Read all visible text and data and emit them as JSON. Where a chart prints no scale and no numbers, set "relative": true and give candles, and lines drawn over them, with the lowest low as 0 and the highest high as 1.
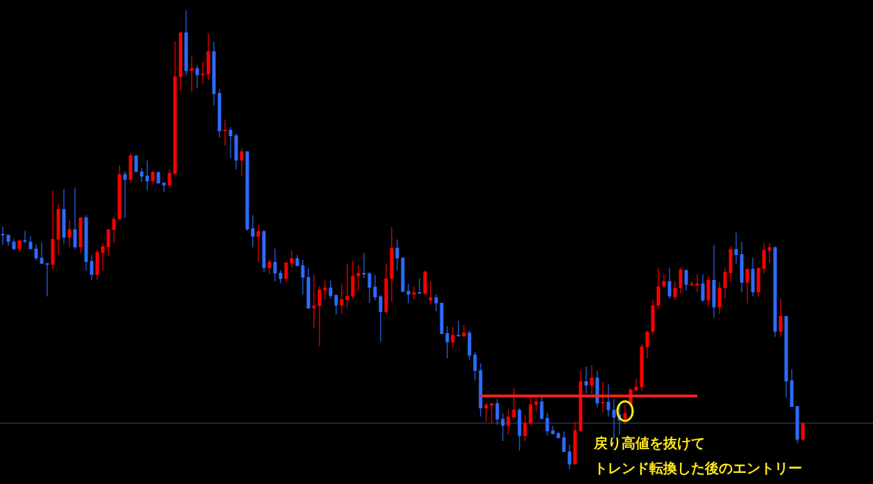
{
  "chart_data": {
    "type": "candlestick",
    "relative": true,
    "categories": [
      null,
      null,
      null,
      null,
      null,
      null,
      null,
      null,
      null,
      null,
      null,
      null,
      null,
      null,
      null,
      null,
      null,
      null,
      null,
      null,
      null,
      null,
      null,
      null,
      null,
      null,
      null,
      null,
      null,
      null,
      null,
      null,
      null,
      null,
      null,
      null,
      null,
      null,
      null,
      null,
      null,
      null,
      null,
      null,
      null,
      null,
      null,
      null,
      null,
      null,
      null,
      null,
      null,
      null,
      null,
      null,
      null,
      null,
      null,
      null,
      null,
      null,
      null,
      null,
      null,
      null,
      null,
      null,
      null,
      null,
      null,
      null,
      null,
      null,
      null,
      null,
      null,
      null,
      null,
      null,
      null,
      null,
      null,
      null,
      null,
      null,
      null,
      null,
      null,
      null,
      null,
      null,
      null,
      null,
      null,
      null,
      null,
      null,
      null,
      null,
      null,
      null,
      null,
      null,
      null,
      null,
      null,
      null,
      null,
      null,
      null,
      null,
      null,
      null,
      null,
      null,
      null,
      null,
      null,
      null,
      null,
      null,
      null,
      null,
      null,
      null,
      null,
      null,
      null,
      null,
      null,
      null,
      null,
      null,
      null,
      null,
      null,
      null,
      null,
      null,
      null,
      null,
      null,
      null,
      null
    ],
    "ohlc": [
      [
        0.513,
        0.528,
        0.489,
        0.51
      ],
      [
        0.511,
        0.511,
        0.487,
        0.496
      ],
      [
        0.496,
        0.502,
        0.478,
        0.48
      ],
      [
        0.48,
        0.499,
        0.475,
        0.499
      ],
      [
        0.499,
        0.52,
        0.493,
        0.496
      ],
      [
        0.496,
        0.508,
        0.48,
        0.48
      ],
      [
        0.481,
        0.49,
        0.455,
        0.46
      ],
      [
        0.461,
        0.495,
        0.448,
        0.448
      ],
      [
        0.449,
        0.449,
        0.377,
        0.446
      ],
      [
        0.446,
        0.607,
        0.436,
        0.502
      ],
      [
        0.501,
        0.578,
        0.467,
        0.567
      ],
      [
        0.567,
        0.611,
        0.492,
        0.505
      ],
      [
        0.505,
        0.543,
        0.484,
        0.523
      ],
      [
        0.523,
        0.613,
        0.48,
        0.484
      ],
      [
        0.484,
        0.549,
        0.471,
        0.549
      ],
      [
        0.549,
        0.554,
        0.433,
        0.452
      ],
      [
        0.454,
        0.467,
        0.413,
        0.424
      ],
      [
        0.424,
        0.478,
        0.413,
        0.474
      ],
      [
        0.472,
        0.493,
        0.434,
        0.486
      ],
      [
        0.484,
        0.523,
        0.464,
        0.523
      ],
      [
        0.522,
        0.551,
        0.493,
        0.546
      ],
      [
        0.545,
        0.663,
        0.545,
        0.643
      ],
      [
        0.643,
        0.649,
        0.548,
        0.631
      ],
      [
        0.631,
        0.69,
        0.625,
        0.684
      ],
      [
        0.684,
        0.684,
        0.648,
        0.648
      ],
      [
        0.649,
        0.657,
        0.626,
        0.638
      ],
      [
        0.64,
        0.673,
        0.608,
        0.628
      ],
      [
        0.628,
        0.651,
        0.622,
        0.648
      ],
      [
        0.648,
        0.648,
        0.623,
        0.623
      ],
      [
        0.625,
        0.625,
        0.604,
        0.619
      ],
      [
        0.619,
        0.654,
        0.613,
        0.646
      ],
      [
        0.644,
        0.933,
        0.641,
        0.856
      ],
      [
        0.855,
        0.952,
        0.825,
        0.952
      ],
      [
        0.952,
        1,
        0.859,
        0.868
      ],
      [
        0.868,
        0.902,
        0.823,
        0.874
      ],
      [
        0.874,
        0.88,
        0.831,
        0.859
      ],
      [
        0.859,
        0.888,
        0.84,
        0.862
      ],
      [
        0.861,
        0.95,
        0.849,
        0.911
      ],
      [
        0.911,
        0.932,
        0.793,
        0.818
      ],
      [
        0.82,
        0.828,
        0.723,
        0.737
      ],
      [
        0.737,
        0.762,
        0.705,
        0.74
      ],
      [
        0.74,
        0.746,
        0.678,
        0.726
      ],
      [
        0.728,
        0.731,
        0.654,
        0.673
      ],
      [
        0.673,
        0.699,
        0.638,
        0.693
      ],
      [
        0.693,
        0.693,
        0.52,
        0.523
      ],
      [
        0.525,
        0.554,
        0.484,
        0.507
      ],
      [
        0.507,
        0.533,
        0.452,
        0.519
      ],
      [
        0.519,
        0.522,
        0.43,
        0.439
      ],
      [
        0.439,
        0.458,
        0.425,
        0.452
      ],
      [
        0.452,
        0.481,
        0.41,
        0.427
      ],
      [
        0.428,
        0.434,
        0.405,
        0.415
      ],
      [
        0.415,
        0.451,
        0.408,
        0.451
      ],
      [
        0.449,
        0.477,
        0.44,
        0.46
      ],
      [
        0.46,
        0.467,
        0.443,
        0.443
      ],
      [
        0.445,
        0.457,
        0.381,
        0.418
      ],
      [
        0.419,
        0.439,
        0.349,
        0.351
      ],
      [
        0.351,
        0.424,
        0.307,
        0.357
      ],
      [
        0.356,
        0.399,
        0.269,
        0.392
      ],
      [
        0.39,
        0.412,
        0.369,
        0.396
      ],
      [
        0.396,
        0.412,
        0.372,
        0.378
      ],
      [
        0.38,
        0.38,
        0.337,
        0.357
      ],
      [
        0.357,
        0.405,
        0.34,
        0.371
      ],
      [
        0.369,
        0.449,
        0.353,
        0.378
      ],
      [
        0.377,
        0.455,
        0.372,
        0.422
      ],
      [
        0.421,
        0.445,
        0.389,
        0.428
      ],
      [
        0.428,
        0.472,
        0.416,
        0.425
      ],
      [
        0.427,
        0.43,
        0.362,
        0.396
      ],
      [
        0.398,
        0.424,
        0.368,
        0.375
      ],
      [
        0.377,
        0.38,
        0.278,
        0.343
      ],
      [
        0.343,
        0.449,
        0.34,
        0.416
      ],
      [
        0.415,
        0.528,
        0.365,
        0.483
      ],
      [
        0.483,
        0.501,
        0.434,
        0.46
      ],
      [
        0.461,
        0.463,
        0.386,
        0.387
      ],
      [
        0.389,
        0.404,
        0.362,
        0.381
      ],
      [
        0.381,
        0.399,
        0.371,
        0.386
      ],
      [
        0.386,
        0.416,
        0.383,
        0.383
      ],
      [
        0.383,
        0.433,
        0.38,
        0.431
      ],
      [
        0.368,
        0.41,
        0.359,
        0.375
      ],
      [
        0.375,
        0.381,
        0.345,
        0.362
      ],
      [
        0.363,
        0.363,
        0.295,
        0.295
      ],
      [
        0.297,
        0.312,
        0.242,
        0.277
      ],
      [
        0.277,
        0.31,
        0.265,
        0.293
      ],
      [
        0.293,
        0.324,
        0.29,
        0.29
      ],
      [
        0.29,
        0.315,
        0.289,
        0.298
      ],
      [
        0.298,
        0.303,
        0.238,
        0.248
      ],
      [
        0.25,
        0.256,
        0.194,
        0.215
      ],
      [
        0.216,
        0.231,
        0.115,
        0.133
      ],
      [
        0.133,
        0.145,
        0.104,
        0.141
      ],
      [
        0.139,
        0.144,
        0.1,
        0.144
      ],
      [
        0.144,
        0.153,
        0.097,
        0.109
      ],
      [
        0.11,
        0.123,
        0.062,
        0.095
      ],
      [
        0.095,
        0.132,
        0.077,
        0.115
      ],
      [
        0.113,
        0.177,
        0.113,
        0.13
      ],
      [
        0.13,
        0.133,
        0.041,
        0.073
      ],
      [
        0.073,
        0.118,
        0.062,
        0.101
      ],
      [
        0.1,
        0.16,
        0.097,
        0.142
      ],
      [
        0.141,
        0.16,
        0.126,
        0.148
      ],
      [
        0.148,
        0.16,
        0.11,
        0.11
      ],
      [
        0.112,
        0.123,
        0.074,
        0.083
      ],
      [
        0.085,
        0.094,
        0.076,
        0.077
      ],
      [
        0.079,
        0.082,
        0.068,
        0.068
      ],
      [
        0.07,
        0.083,
        0.038,
        0.038
      ],
      [
        0.039,
        0.054,
        0,
        0.011
      ],
      [
        0.011,
        0.103,
        0.011,
        0.085
      ],
      [
        0.083,
        0.216,
        0.082,
        0.192
      ],
      [
        0.192,
        0.224,
        0.165,
        0.183
      ],
      [
        0.183,
        0.227,
        0.165,
        0.2
      ],
      [
        0.2,
        0.215,
        0.135,
        0.144
      ],
      [
        0.144,
        0.191,
        0.124,
        0.147
      ],
      [
        0.147,
        0.185,
        0.115,
        0.129
      ],
      [
        0.13,
        0.153,
        0.067,
        0.113
      ],
      [
        0.12,
        0.142,
        0.076,
        0.107
      ],
      [
        0.11,
        0.141,
        0.098,
        0.123
      ],
      [
        0.142,
        0.177,
        0.142,
        0.174
      ],
      [
        0.172,
        0.198,
        0.171,
        0.18
      ],
      [
        0.179,
        0.274,
        0.171,
        0.268
      ],
      [
        0.266,
        0.303,
        0.242,
        0.3
      ],
      [
        0.3,
        0.369,
        0.293,
        0.357
      ],
      [
        0.357,
        0.44,
        0.349,
        0.399
      ],
      [
        0.399,
        0.425,
        0.395,
        0.41
      ],
      [
        0.41,
        0.44,
        0.372,
        0.377
      ],
      [
        0.375,
        0.41,
        0.369,
        0.395
      ],
      [
        0.395,
        0.44,
        0.384,
        0.436
      ],
      [
        0.434,
        0.436,
        0.39,
        0.402
      ],
      [
        0.402,
        0.41,
        0.399,
        0.405
      ],
      [
        0.401,
        0.425,
        0.387,
        0.405
      ],
      [
        0.405,
        0.425,
        0.365,
        0.368
      ],
      [
        0.368,
        0.421,
        0.356,
        0.413
      ],
      [
        0.413,
        0.489,
        0.331,
        0.353
      ],
      [
        0.353,
        0.408,
        0.339,
        0.396
      ],
      [
        0.395,
        0.44,
        0.372,
        0.43
      ],
      [
        0.428,
        0.486,
        0.41,
        0.48
      ],
      [
        0.48,
        0.516,
        0.449,
        0.467
      ],
      [
        0.469,
        0.496,
        0.386,
        0.407
      ],
      [
        0.407,
        0.437,
        0.362,
        0.437
      ],
      [
        0.437,
        0.461,
        0.377,
        0.386
      ],
      [
        0.386,
        0.44,
        0.377,
        0.439
      ],
      [
        0.437,
        0.493,
        0.427,
        0.478
      ],
      [
        0.477,
        0.493,
        0.451,
        0.484
      ],
      [
        0.484,
        0.486,
        0.289,
        0.3
      ],
      [
        0.3,
        0.371,
        0.289,
        0.334
      ],
      [
        0.334,
        0.334,
        0.157,
        0.192
      ],
      [
        0.194,
        0.218,
        0.136,
        0.136
      ],
      [
        0.138,
        0.138,
        0.057,
        0.065
      ],
      [
        0.065,
        0.101,
        0.062,
        0.101
      ]
    ],
    "colors": [
      "#2d6bff",
      "#2d6bff",
      "#2d6bff",
      "#ff0000",
      "#2d6bff",
      "#2d6bff",
      "#2d6bff",
      "#2d6bff",
      "#2d6bff",
      "#ff0000",
      "#ff0000",
      "#2d6bff",
      "#ff0000",
      "#2d6bff",
      "#ff0000",
      "#2d6bff",
      "#2d6bff",
      "#ff0000",
      "#ff0000",
      "#ff0000",
      "#ff0000",
      "#ff0000",
      "#2d6bff",
      "#ff0000",
      "#2d6bff",
      "#2d6bff",
      "#2d6bff",
      "#ff0000",
      "#2d6bff",
      "#2d6bff",
      "#ff0000",
      "#ff0000",
      "#ff0000",
      "#2d6bff",
      "#ff0000",
      "#2d6bff",
      "#ff0000",
      "#ff0000",
      "#2d6bff",
      "#2d6bff",
      "#ff0000",
      "#2d6bff",
      "#2d6bff",
      "#ff0000",
      "#2d6bff",
      "#2d6bff",
      "#ff0000",
      "#2d6bff",
      "#ff0000",
      "#2d6bff",
      "#2d6bff",
      "#ff0000",
      "#ff0000",
      "#2d6bff",
      "#2d6bff",
      "#2d6bff",
      "#ff0000",
      "#ff0000",
      "#ff0000",
      "#2d6bff",
      "#2d6bff",
      "#ff0000",
      "#ff0000",
      "#ff0000",
      "#ff0000",
      "#2d6bff",
      "#2d6bff",
      "#2d6bff",
      "#2d6bff",
      "#ff0000",
      "#ff0000",
      "#2d6bff",
      "#2d6bff",
      "#2d6bff",
      "#ff0000",
      "#2d6bff",
      "#ff0000",
      "#ff0000",
      "#2d6bff",
      "#2d6bff",
      "#2d6bff",
      "#ff0000",
      "#2d6bff",
      "#ff0000",
      "#2d6bff",
      "#2d6bff",
      "#2d6bff",
      "#ff0000",
      "#ff0000",
      "#2d6bff",
      "#2d6bff",
      "#ff0000",
      "#ff0000",
      "#2d6bff",
      "#ff0000",
      "#ff0000",
      "#ff0000",
      "#2d6bff",
      "#2d6bff",
      "#2d6bff",
      "#2d6bff",
      "#2d6bff",
      "#2d6bff",
      "#ff0000",
      "#ff0000",
      "#2d6bff",
      "#ff0000",
      "#2d6bff",
      "#ff0000",
      "#2d6bff",
      "#2d6bff",
      "#2d6bff",
      "#ff0000",
      "#ff0000",
      "#ff0000",
      "#ff0000",
      "#ff0000",
      "#ff0000",
      "#ff0000",
      "#ff0000",
      "#2d6bff",
      "#ff0000",
      "#ff0000",
      "#2d6bff",
      "#ff0000",
      "#ff0000",
      "#2d6bff",
      "#ff0000",
      "#2d6bff",
      "#ff0000",
      "#ff0000",
      "#ff0000",
      "#2d6bff",
      "#2d6bff",
      "#ff0000",
      "#2d6bff",
      "#ff0000",
      "#ff0000",
      "#ff0000",
      "#2d6bff",
      "#ff0000",
      "#2d6bff",
      "#2d6bff",
      "#2d6bff",
      "#ff0000"
    ],
    "series": [
      {
        "type": "line",
        "color": "#ff2020",
        "values": [
          null,
          null,
          null,
          null,
          null,
          null,
          null,
          null,
          null,
          null,
          null,
          null,
          null,
          null,
          null,
          null,
          null,
          null,
          null,
          null,
          null,
          null,
          null,
          null,
          null,
          null,
          null,
          null,
          null,
          null,
          null,
          null,
          null,
          null,
          null,
          null,
          null,
          null,
          null,
          null,
          null,
          null,
          null,
          null,
          null,
          null,
          null,
          null,
          null,
          null,
          null,
          null,
          null,
          null,
          null,
          null,
          null,
          null,
          null,
          null,
          null,
          null,
          null,
          null,
          null,
          null,
          null,
          null,
          null,
          null,
          null,
          null,
          null,
          null,
          null,
          null,
          null,
          null,
          null,
          null,
          null,
          null,
          null,
          null,
          null,
          null,
          0.16,
          0.16,
          0.16,
          0.16,
          0.16,
          0.16,
          0.16,
          0.16,
          0.16,
          0.16,
          0.16,
          0.16,
          0.16,
          0.16,
          0.16,
          0.16,
          0.16,
          0.16,
          0.16,
          0.16,
          0.16,
          0.16,
          0.16,
          0.16,
          0.16,
          0.16,
          0.16,
          0.16,
          0.16,
          0.16,
          0.16,
          0.16,
          0.16,
          0.16,
          0.16,
          0.16,
          0.16,
          0.16,
          0.16,
          0.16,
          null,
          null,
          null,
          null,
          null,
          null,
          null,
          null,
          null,
          null,
          null,
          null,
          null,
          null,
          null,
          null,
          null,
          null,
          null
        ]
      }
    ],
    "ref_lines": [
      {
        "axis": "y",
        "value": 0.101,
        "color": "#4b4b6e"
      }
    ],
    "annotations": [
      "戻り高値を抜けて",
      "トレンド転換した後のエントリー"
    ]
  }
}
